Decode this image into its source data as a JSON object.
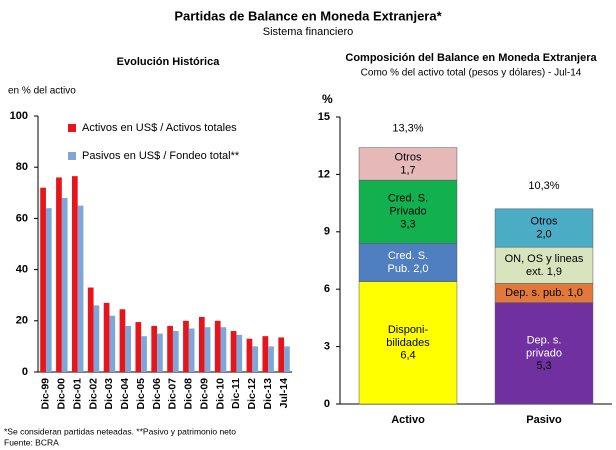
{
  "title": "Partidas de Balance en Moneda Extranjera*",
  "subtitle": "Sistema financiero",
  "notes": [
    "*Se consideran partidas neteadas. **Pasivo y patrimonio neto",
    "Fuente: BCRA"
  ],
  "chart_data": [
    {
      "type": "bar",
      "title": "Evolución Histórica",
      "ylabel": "en % del activo",
      "categories": [
        "Dic-99",
        "Dic-00",
        "Dic-01",
        "Dic-02",
        "Dic-03",
        "Dic-04",
        "Dic-05",
        "Dic-06",
        "Dic-07",
        "Dic-08",
        "Dic-09",
        "Dic-10",
        "Dic-11",
        "Dic-12",
        "Dic-13",
        "Jul-14"
      ],
      "series": [
        {
          "name": "Activos en US$ / Activos totales",
          "color": "#e8141b",
          "values": [
            72,
            76,
            76.5,
            33,
            27,
            24.5,
            19.5,
            18,
            18,
            20,
            21.5,
            20,
            16,
            13,
            14,
            13.5
          ]
        },
        {
          "name": "Pasivos en US$ / Fondeo total**",
          "color": "#7ea6d8",
          "values": [
            64,
            68,
            65,
            26,
            22,
            18,
            14,
            15,
            16,
            17,
            17.5,
            17.5,
            14.5,
            10,
            10,
            10
          ]
        }
      ],
      "ylim": [
        0,
        100
      ],
      "yticks": [
        0,
        20,
        40,
        60,
        80,
        100
      ],
      "grid": false,
      "legend": "top"
    },
    {
      "type": "stacked-bar",
      "title": "Composición del Balance en Moneda Extranjera",
      "subtitle": "Como % del activo total (pesos y dólares) - Jul-14",
      "ylabel": "%",
      "categories": [
        "Activo",
        "Pasivo"
      ],
      "totals": [
        13.3,
        10.3
      ],
      "total_labels": [
        "13,3%",
        "10,3%"
      ],
      "series": [
        {
          "name": [
            "Disponi-",
            "bilidades"
          ],
          "color": "#ffff00",
          "text_color": "#000",
          "values": [
            6.4,
            null
          ],
          "value_labels": [
            "6,4",
            null
          ]
        },
        {
          "name": [
            "Cred. S.",
            "Pub."
          ],
          "color": "#4f7fbf",
          "text_color": "#fff",
          "values": [
            2.0,
            null
          ],
          "value_labels": [
            "2,0",
            null
          ]
        },
        {
          "name": [
            "Cred. S.",
            "Privado"
          ],
          "color": "#12b04f",
          "text_color": "#000",
          "values": [
            3.3,
            null
          ],
          "value_labels": [
            "3,3",
            null
          ]
        },
        {
          "name": [
            "Otros"
          ],
          "color": "#e6b9b8",
          "text_color": "#000",
          "values": [
            1.7,
            null
          ],
          "value_labels": [
            "1,7",
            null
          ]
        },
        {
          "name": [
            "Dep. s.",
            "privado"
          ],
          "color": "#7030a0",
          "text_color": "#fff",
          "values": [
            null,
            5.3
          ],
          "value_labels": [
            null,
            "5,3"
          ]
        },
        {
          "name": [
            "Dep. s. pub."
          ],
          "color": "#e0793a",
          "text_color": "#000",
          "values": [
            null,
            1.0
          ],
          "value_labels": [
            null,
            "1,0"
          ]
        },
        {
          "name": [
            "ON, OS y lineas",
            "ext."
          ],
          "color": "#d7e4bd",
          "text_color": "#000",
          "values": [
            null,
            1.9
          ],
          "value_labels": [
            null,
            "1,9"
          ]
        },
        {
          "name": [
            "Otros"
          ],
          "color": "#4bacc6",
          "text_color": "#000",
          "values": [
            null,
            2.0
          ],
          "value_labels": [
            null,
            "2,0"
          ]
        }
      ],
      "ylim": [
        0,
        15
      ],
      "yticks": [
        0,
        3,
        6,
        9,
        12,
        15
      ],
      "grid": false
    }
  ]
}
